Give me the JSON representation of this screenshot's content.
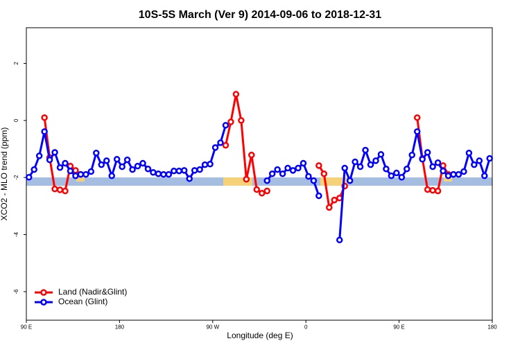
{
  "chart_data": {
    "type": "line",
    "title": "10S-5S March (Ver 9)   2014-09-06 to 2018-12-31",
    "x_label": "Longitude (deg E)",
    "y_label": "XCO2 - MLO trend (ppm)",
    "x": [
      92.5,
      97.5,
      102.5,
      107.5,
      112.5,
      117.5,
      122.5,
      127.5,
      132.5,
      137.5,
      142.5,
      147.5,
      152.5,
      157.5,
      162.5,
      167.5,
      172.5,
      177.5,
      182.5,
      187.5,
      192.5,
      197.5,
      202.5,
      207.5,
      212.5,
      217.5,
      222.5,
      227.5,
      232.5,
      237.5,
      242.5,
      247.5,
      252.5,
      257.5,
      262.5,
      267.5,
      272.5,
      277.5,
      282.5,
      287.5,
      292.5,
      297.5,
      302.5,
      307.5,
      312.5,
      317.5,
      322.5,
      327.5,
      332.5,
      337.5,
      342.5,
      347.5,
      352.5,
      357.5,
      362.5,
      367.5,
      372.5,
      377.5,
      382.5,
      387.5,
      392.5,
      397.5,
      402.5,
      407.5,
      412.5,
      417.5,
      422.5,
      427.5,
      432.5,
      437.5,
      442.5,
      447.5,
      452.5,
      457.5,
      462.5,
      467.5,
      472.5,
      477.5,
      482.5,
      487.5,
      492.5,
      497.5,
      502.5,
      507.5,
      512.5,
      517.5,
      522.5,
      527.5,
      532.5,
      537.5
    ],
    "series": [
      {
        "name": "Land (Nadir&Glint)",
        "color": "#ff0000",
        "values": [
          null,
          null,
          null,
          0.1,
          -1.3,
          -2.4,
          -2.43,
          -2.47,
          -1.6,
          -1.75,
          -1.89,
          null,
          null,
          null,
          null,
          null,
          null,
          null,
          null,
          null,
          null,
          null,
          null,
          null,
          null,
          null,
          null,
          null,
          null,
          null,
          null,
          null,
          null,
          null,
          null,
          null,
          null,
          null,
          -0.87,
          -0.05,
          0.92,
          0.0,
          -2.06,
          -1.21,
          -2.42,
          -2.55,
          -2.47,
          null,
          null,
          null,
          null,
          null,
          null,
          null,
          null,
          null,
          -1.58,
          -1.87,
          -3.05,
          -2.79,
          -2.72,
          -2.3,
          null,
          null,
          null,
          null,
          null,
          null,
          null,
          null,
          null,
          null,
          null,
          null,
          null,
          0.1,
          -1.33,
          -2.42,
          -2.45,
          -2.47,
          -1.58,
          -1.89,
          -1.89,
          null,
          null,
          null,
          null,
          null,
          null,
          null
        ]
      },
      {
        "name": "Ocean (Glint)",
        "color": "#0000ff",
        "values": [
          -1.99,
          -1.72,
          -1.24,
          -0.39,
          -1.38,
          -1.12,
          -1.65,
          -1.5,
          -1.77,
          -1.94,
          -1.89,
          -1.89,
          -1.79,
          -1.14,
          -1.55,
          -1.41,
          -1.94,
          -1.36,
          -1.62,
          -1.38,
          -1.72,
          -1.6,
          -1.5,
          -1.7,
          -1.82,
          -1.87,
          -1.89,
          -1.89,
          -1.77,
          -1.77,
          -1.75,
          -2.04,
          -1.75,
          -1.72,
          -1.55,
          -1.53,
          -0.95,
          -0.78,
          -0.17,
          null,
          null,
          null,
          null,
          null,
          null,
          null,
          -2.11,
          -1.87,
          -1.72,
          -1.87,
          -1.67,
          -1.75,
          -1.67,
          -1.5,
          -1.96,
          -2.11,
          -2.64,
          null,
          null,
          null,
          -4.19,
          -1.67,
          -2.11,
          -1.45,
          -1.62,
          -1.04,
          -1.55,
          -1.41,
          -1.19,
          -1.7,
          -1.94,
          -1.84,
          -1.99,
          -1.7,
          -1.21,
          -0.39,
          -1.36,
          -1.12,
          -1.62,
          -1.48,
          -1.77,
          -1.94,
          -1.89,
          -1.89,
          -1.79,
          -1.14,
          -1.55,
          -1.41,
          -1.94,
          -1.33
        ]
      }
    ],
    "xlim": [
      90,
      540
    ],
    "xticks": [
      {
        "value": 90,
        "label": "90 E"
      },
      180,
      {
        "value": 270,
        "label": "90 W"
      },
      {
        "value": 360,
        "label": "0"
      },
      {
        "value": 450,
        "label": "90 E"
      },
      {
        "value": 540,
        "label": "180"
      }
    ],
    "ylim": [
      -7,
      3.25
    ],
    "yticks": [
      -6,
      -4,
      -2,
      0,
      2
    ],
    "legend": "bottom-left"
  }
}
